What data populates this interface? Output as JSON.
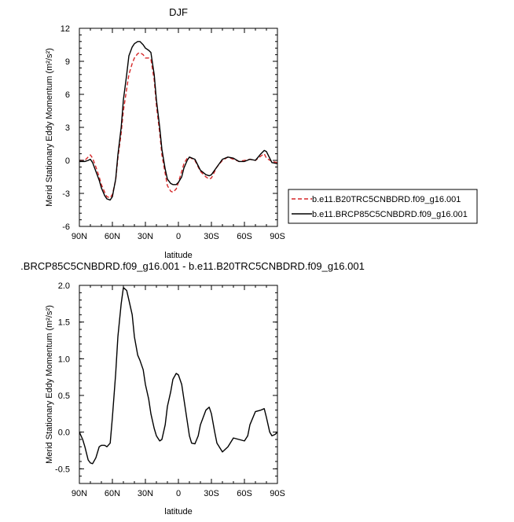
{
  "chart_data": [
    {
      "type": "line",
      "title": "DJF",
      "xlabel": "latitude",
      "ylabel": "Merid Stationary Eddy Momentum (m²/s²)",
      "xlim": [
        90,
        -90
      ],
      "ylim": [
        -6,
        12
      ],
      "xticks": [
        90,
        60,
        30,
        0,
        -30,
        -60,
        -90
      ],
      "xtick_labels": [
        "90N",
        "60N",
        "30N",
        "0",
        "30S",
        "60S",
        "90S"
      ],
      "yticks": [
        -6,
        -3,
        0,
        3,
        6,
        9,
        12
      ],
      "ytick_labels": [
        "-6",
        "-3",
        "0",
        "3",
        "6",
        "9",
        "12"
      ],
      "legend_position": "right",
      "series": [
        {
          "name": "b.e11.B20TRC5CNBDRD.f09_g16.001",
          "color": "#d62728",
          "dash": "dashed",
          "x": [
            90,
            85,
            82,
            80,
            78,
            75,
            72,
            70,
            67,
            65,
            62,
            60,
            57,
            55,
            52,
            50,
            47,
            45,
            42,
            40,
            37,
            35,
            32,
            30,
            27,
            25,
            22,
            20,
            17,
            15,
            12,
            10,
            7,
            5,
            2,
            0,
            -3,
            -5,
            -8,
            -10,
            -15,
            -18,
            -20,
            -25,
            -28,
            -30,
            -35,
            -40,
            -45,
            -50,
            -55,
            -60,
            -65,
            -70,
            -75,
            -78,
            -80,
            -85,
            -90
          ],
          "y": [
            0.0,
            0.0,
            0.3,
            0.5,
            0.2,
            -0.6,
            -1.5,
            -2.2,
            -2.9,
            -3.3,
            -3.4,
            -3.1,
            -1.8,
            0.2,
            2.5,
            4.5,
            6.5,
            7.8,
            8.8,
            9.3,
            9.7,
            9.8,
            9.6,
            9.3,
            9.3,
            9.2,
            7.3,
            5.0,
            2.5,
            0.5,
            -1.2,
            -2.3,
            -2.8,
            -2.9,
            -2.6,
            -2.0,
            -1.0,
            -0.3,
            0.2,
            0.3,
            0.0,
            -0.6,
            -1.0,
            -1.5,
            -1.7,
            -1.6,
            -0.6,
            0.0,
            0.3,
            0.1,
            -0.1,
            0.0,
            0.1,
            0.0,
            0.4,
            0.6,
            0.2,
            -0.1,
            -0.2
          ]
        },
        {
          "name": "b.e11.BRCP85C5CNBDRD.f09_g16.001",
          "color": "#000000",
          "dash": "solid",
          "x": [
            90,
            85,
            82,
            80,
            78,
            75,
            72,
            70,
            67,
            65,
            62,
            60,
            57,
            55,
            52,
            50,
            47,
            45,
            42,
            40,
            37,
            35,
            32,
            30,
            27,
            25,
            22,
            20,
            17,
            15,
            12,
            10,
            7,
            5,
            2,
            0,
            -3,
            -5,
            -8,
            -10,
            -15,
            -18,
            -20,
            -25,
            -28,
            -30,
            -35,
            -40,
            -45,
            -50,
            -55,
            -60,
            -65,
            -70,
            -75,
            -78,
            -80,
            -85,
            -90
          ],
          "y": [
            -0.1,
            -0.1,
            0.0,
            0.1,
            -0.2,
            -1.0,
            -1.8,
            -2.5,
            -3.2,
            -3.5,
            -3.6,
            -3.3,
            -1.7,
            0.5,
            3.0,
            5.5,
            7.8,
            9.5,
            10.3,
            10.6,
            10.8,
            10.8,
            10.5,
            10.2,
            10.0,
            9.8,
            7.8,
            5.5,
            3.0,
            1.0,
            -0.8,
            -1.7,
            -2.1,
            -2.2,
            -2.2,
            -2.0,
            -1.5,
            -0.7,
            0.0,
            0.3,
            0.1,
            -0.5,
            -0.9,
            -1.3,
            -1.4,
            -1.3,
            -0.6,
            0.1,
            0.3,
            0.2,
            -0.1,
            -0.1,
            0.1,
            0.0,
            0.6,
            0.9,
            0.8,
            -0.2,
            -0.3
          ]
        }
      ]
    },
    {
      "type": "line",
      "title": ".BRCP85C5CNBDRD.f09_g16.001 - b.e11.B20TRC5CNBDRD.f09_g16.001",
      "xlabel": "latitude",
      "ylabel": "Merid Stationary Eddy Momentum (m²/s²)",
      "xlim": [
        90,
        -90
      ],
      "ylim": [
        -0.7,
        2.0
      ],
      "xticks": [
        90,
        60,
        30,
        0,
        -30,
        -60,
        -90
      ],
      "xtick_labels": [
        "90N",
        "60N",
        "30N",
        "0",
        "30S",
        "60S",
        "90S"
      ],
      "yticks": [
        -0.5,
        0.0,
        0.5,
        1.0,
        1.5,
        2.0
      ],
      "ytick_labels": [
        "-0.5",
        "0.0",
        "0.5",
        "1.0",
        "1.5",
        "2.0"
      ],
      "series": [
        {
          "color": "#000000",
          "dash": "solid",
          "x": [
            90,
            87,
            85,
            82,
            80,
            78,
            75,
            72,
            70,
            67,
            65,
            62,
            60,
            57,
            55,
            52,
            50,
            47,
            45,
            42,
            40,
            37,
            35,
            32,
            30,
            27,
            25,
            22,
            20,
            17,
            15,
            12,
            10,
            7,
            5,
            2,
            0,
            -3,
            -5,
            -8,
            -10,
            -12,
            -15,
            -18,
            -20,
            -25,
            -28,
            -30,
            -33,
            -35,
            -40,
            -45,
            -50,
            -55,
            -60,
            -63,
            -65,
            -70,
            -75,
            -78,
            -80,
            -83,
            -85,
            -88,
            -90
          ],
          "y": [
            0.0,
            -0.1,
            -0.2,
            -0.38,
            -0.42,
            -0.43,
            -0.35,
            -0.2,
            -0.18,
            -0.18,
            -0.2,
            -0.15,
            0.2,
            0.8,
            1.3,
            1.75,
            1.97,
            1.93,
            1.8,
            1.6,
            1.3,
            1.05,
            0.98,
            0.85,
            0.65,
            0.45,
            0.25,
            0.05,
            -0.05,
            -0.12,
            -0.1,
            0.1,
            0.35,
            0.55,
            0.72,
            0.8,
            0.78,
            0.65,
            0.45,
            0.15,
            -0.05,
            -0.15,
            -0.16,
            -0.05,
            0.1,
            0.3,
            0.34,
            0.25,
            0.0,
            -0.15,
            -0.27,
            -0.2,
            -0.08,
            -0.1,
            -0.12,
            -0.05,
            0.1,
            0.28,
            0.3,
            0.32,
            0.2,
            0.0,
            -0.05,
            -0.03,
            0.0
          ]
        }
      ]
    }
  ]
}
